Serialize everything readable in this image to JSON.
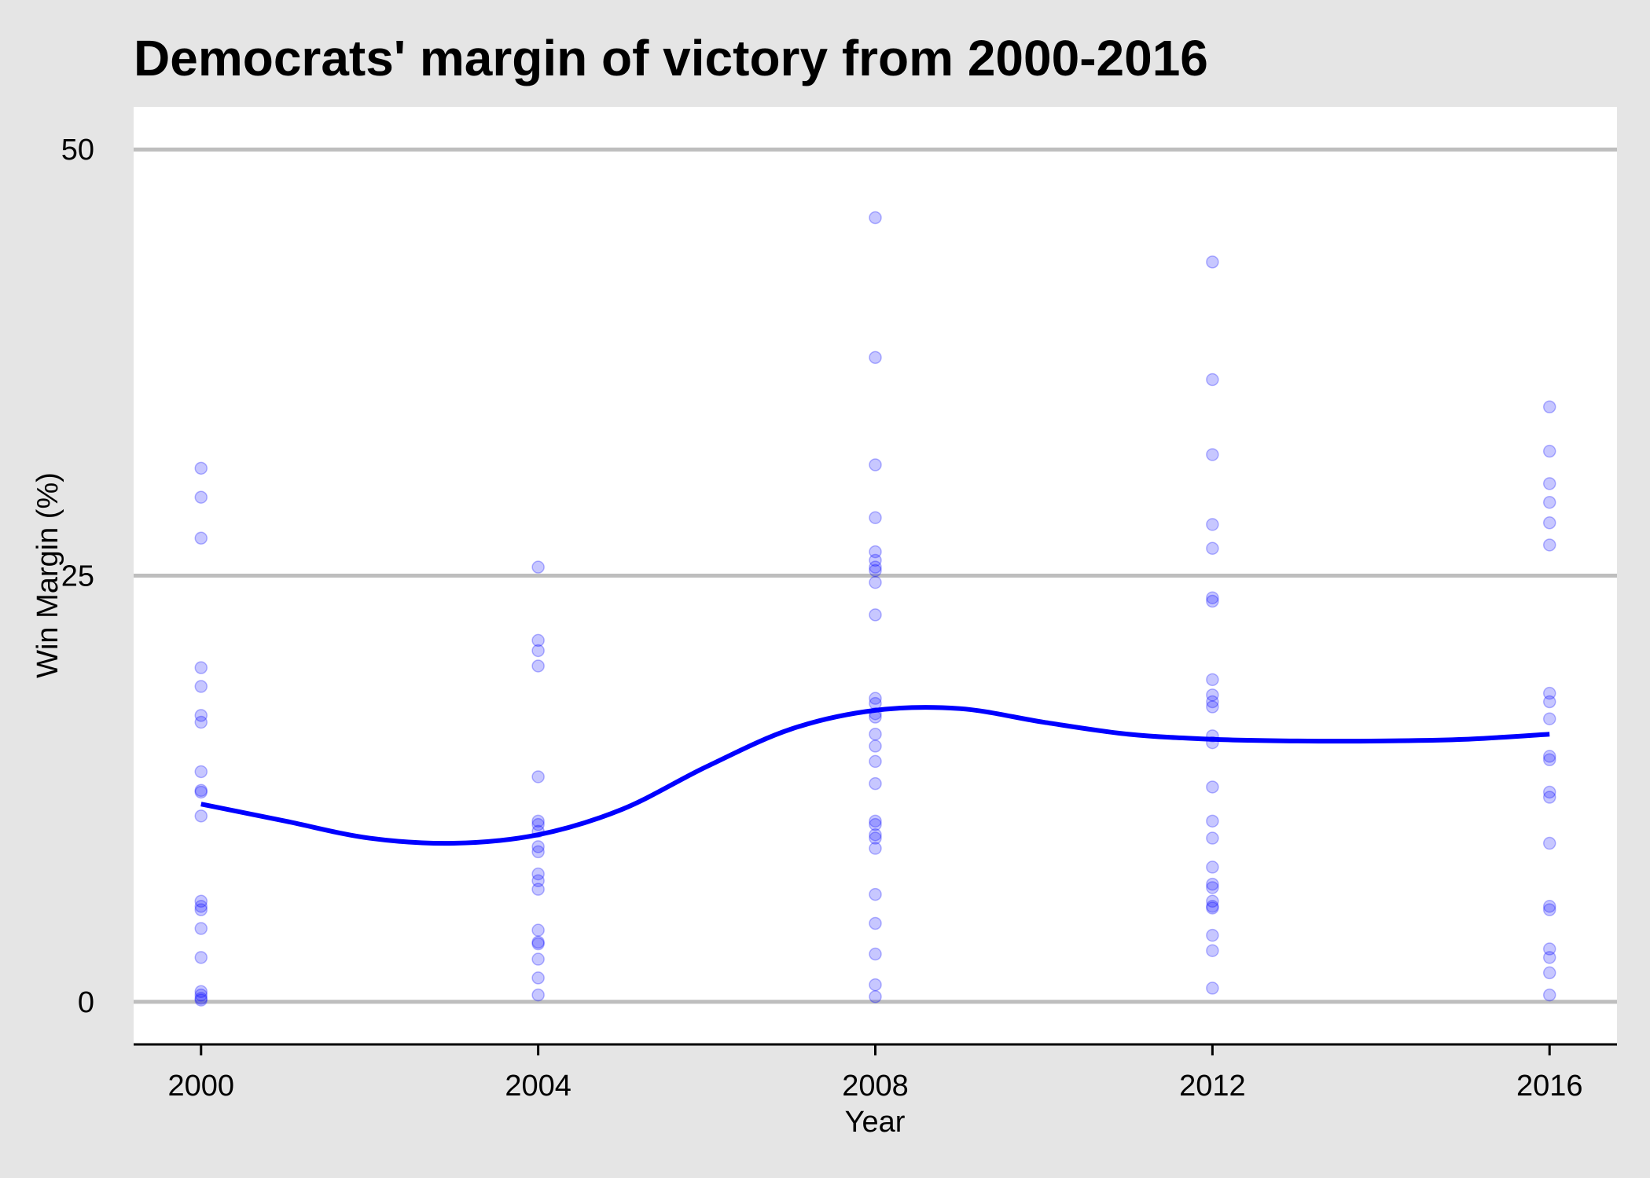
{
  "chart_data": {
    "type": "scatter",
    "title": "Democrats' margin of victory from 2000-2016",
    "xlabel": "Year",
    "ylabel": "Win Margin (%)",
    "xlim": [
      1999.2,
      2016.8
    ],
    "ylim": [
      -2.5,
      52.5
    ],
    "x_ticks": [
      2000,
      2004,
      2008,
      2012,
      2016
    ],
    "x_tick_labels": [
      "2000",
      "2004",
      "2008",
      "2012",
      "2016"
    ],
    "y_ticks": [
      0,
      25,
      50
    ],
    "y_tick_labels": [
      "0",
      "25",
      "50"
    ],
    "grid": "horizontal",
    "legend": "none",
    "colors": {
      "background": "#e5e5e5",
      "panel": "#ffffff",
      "gridline": "#bebebe",
      "point": "#0000ff",
      "trend": "#0000ff",
      "axis": "#000000"
    },
    "series": [
      {
        "type": "scatter",
        "points": [
          {
            "x": 2000,
            "y": 31.3
          },
          {
            "x": 2000,
            "y": 29.6
          },
          {
            "x": 2000,
            "y": 27.2
          },
          {
            "x": 2000,
            "y": 19.6
          },
          {
            "x": 2000,
            "y": 18.5
          },
          {
            "x": 2000,
            "y": 16.8
          },
          {
            "x": 2000,
            "y": 16.4
          },
          {
            "x": 2000,
            "y": 13.5
          },
          {
            "x": 2000,
            "y": 12.4
          },
          {
            "x": 2000,
            "y": 12.3
          },
          {
            "x": 2000,
            "y": 10.9
          },
          {
            "x": 2000,
            "y": 5.9
          },
          {
            "x": 2000,
            "y": 5.6
          },
          {
            "x": 2000,
            "y": 5.4
          },
          {
            "x": 2000,
            "y": 4.3
          },
          {
            "x": 2000,
            "y": 2.6
          },
          {
            "x": 2000,
            "y": 0.6
          },
          {
            "x": 2000,
            "y": 0.4
          },
          {
            "x": 2000,
            "y": 0.2
          },
          {
            "x": 2000,
            "y": 0.1
          },
          {
            "x": 2004,
            "y": 25.5
          },
          {
            "x": 2004,
            "y": 21.2
          },
          {
            "x": 2004,
            "y": 20.6
          },
          {
            "x": 2004,
            "y": 19.7
          },
          {
            "x": 2004,
            "y": 13.2
          },
          {
            "x": 2004,
            "y": 10.6
          },
          {
            "x": 2004,
            "y": 10.4
          },
          {
            "x": 2004,
            "y": 10.0
          },
          {
            "x": 2004,
            "y": 9.1
          },
          {
            "x": 2004,
            "y": 8.8
          },
          {
            "x": 2004,
            "y": 7.5
          },
          {
            "x": 2004,
            "y": 7.1
          },
          {
            "x": 2004,
            "y": 6.6
          },
          {
            "x": 2004,
            "y": 4.2
          },
          {
            "x": 2004,
            "y": 3.5
          },
          {
            "x": 2004,
            "y": 3.4
          },
          {
            "x": 2004,
            "y": 2.5
          },
          {
            "x": 2004,
            "y": 1.4
          },
          {
            "x": 2004,
            "y": 0.4
          },
          {
            "x": 2008,
            "y": 46.0
          },
          {
            "x": 2008,
            "y": 37.8
          },
          {
            "x": 2008,
            "y": 31.5
          },
          {
            "x": 2008,
            "y": 28.4
          },
          {
            "x": 2008,
            "y": 26.4
          },
          {
            "x": 2008,
            "y": 25.9
          },
          {
            "x": 2008,
            "y": 25.5
          },
          {
            "x": 2008,
            "y": 25.3
          },
          {
            "x": 2008,
            "y": 24.6
          },
          {
            "x": 2008,
            "y": 22.7
          },
          {
            "x": 2008,
            "y": 17.8
          },
          {
            "x": 2008,
            "y": 17.5
          },
          {
            "x": 2008,
            "y": 16.9
          },
          {
            "x": 2008,
            "y": 16.7
          },
          {
            "x": 2008,
            "y": 15.7
          },
          {
            "x": 2008,
            "y": 15.0
          },
          {
            "x": 2008,
            "y": 14.1
          },
          {
            "x": 2008,
            "y": 12.8
          },
          {
            "x": 2008,
            "y": 10.6
          },
          {
            "x": 2008,
            "y": 10.4
          },
          {
            "x": 2008,
            "y": 9.8
          },
          {
            "x": 2008,
            "y": 9.6
          },
          {
            "x": 2008,
            "y": 9.0
          },
          {
            "x": 2008,
            "y": 6.3
          },
          {
            "x": 2008,
            "y": 4.6
          },
          {
            "x": 2008,
            "y": 2.8
          },
          {
            "x": 2008,
            "y": 1.0
          },
          {
            "x": 2008,
            "y": 0.3
          },
          {
            "x": 2012,
            "y": 43.4
          },
          {
            "x": 2012,
            "y": 36.5
          },
          {
            "x": 2012,
            "y": 32.1
          },
          {
            "x": 2012,
            "y": 28.0
          },
          {
            "x": 2012,
            "y": 26.6
          },
          {
            "x": 2012,
            "y": 23.7
          },
          {
            "x": 2012,
            "y": 23.5
          },
          {
            "x": 2012,
            "y": 18.9
          },
          {
            "x": 2012,
            "y": 18.0
          },
          {
            "x": 2012,
            "y": 17.6
          },
          {
            "x": 2012,
            "y": 17.3
          },
          {
            "x": 2012,
            "y": 15.6
          },
          {
            "x": 2012,
            "y": 15.2
          },
          {
            "x": 2012,
            "y": 12.6
          },
          {
            "x": 2012,
            "y": 10.6
          },
          {
            "x": 2012,
            "y": 9.6
          },
          {
            "x": 2012,
            "y": 7.9
          },
          {
            "x": 2012,
            "y": 6.9
          },
          {
            "x": 2012,
            "y": 6.7
          },
          {
            "x": 2012,
            "y": 5.9
          },
          {
            "x": 2012,
            "y": 5.6
          },
          {
            "x": 2012,
            "y": 5.5
          },
          {
            "x": 2012,
            "y": 3.9
          },
          {
            "x": 2012,
            "y": 3.0
          },
          {
            "x": 2012,
            "y": 0.8
          },
          {
            "x": 2016,
            "y": 34.9
          },
          {
            "x": 2016,
            "y": 32.3
          },
          {
            "x": 2016,
            "y": 30.4
          },
          {
            "x": 2016,
            "y": 29.3
          },
          {
            "x": 2016,
            "y": 28.1
          },
          {
            "x": 2016,
            "y": 26.8
          },
          {
            "x": 2016,
            "y": 18.1
          },
          {
            "x": 2016,
            "y": 17.6
          },
          {
            "x": 2016,
            "y": 16.6
          },
          {
            "x": 2016,
            "y": 14.4
          },
          {
            "x": 2016,
            "y": 14.2
          },
          {
            "x": 2016,
            "y": 12.3
          },
          {
            "x": 2016,
            "y": 12.0
          },
          {
            "x": 2016,
            "y": 9.3
          },
          {
            "x": 2016,
            "y": 5.6
          },
          {
            "x": 2016,
            "y": 5.4
          },
          {
            "x": 2016,
            "y": 3.1
          },
          {
            "x": 2016,
            "y": 2.6
          },
          {
            "x": 2016,
            "y": 1.7
          },
          {
            "x": 2016,
            "y": 0.4
          }
        ]
      },
      {
        "type": "line",
        "points": [
          {
            "x": 2000,
            "y": 11.6
          },
          {
            "x": 2001,
            "y": 10.6
          },
          {
            "x": 2002,
            "y": 9.6
          },
          {
            "x": 2003,
            "y": 9.3
          },
          {
            "x": 2004,
            "y": 9.8
          },
          {
            "x": 2005,
            "y": 11.3
          },
          {
            "x": 2006,
            "y": 13.8
          },
          {
            "x": 2007,
            "y": 16.0
          },
          {
            "x": 2008,
            "y": 17.1
          },
          {
            "x": 2009,
            "y": 17.2
          },
          {
            "x": 2010,
            "y": 16.4
          },
          {
            "x": 2011,
            "y": 15.7
          },
          {
            "x": 2012,
            "y": 15.4
          },
          {
            "x": 2013,
            "y": 15.3
          },
          {
            "x": 2014,
            "y": 15.3
          },
          {
            "x": 2015,
            "y": 15.4
          },
          {
            "x": 2016,
            "y": 15.7
          }
        ]
      }
    ]
  }
}
